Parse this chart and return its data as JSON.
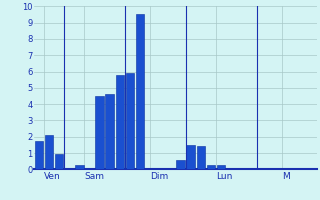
{
  "bar_values": [
    1.75,
    2.1,
    0.95,
    0.0,
    0.3,
    0.0,
    4.5,
    4.6,
    5.8,
    5.9,
    9.5,
    0.0,
    0.0,
    0.0,
    0.55,
    1.5,
    1.45,
    0.3,
    0.3,
    0.0,
    0.0,
    0.0,
    0.0,
    0.0,
    0.0,
    0.0,
    0.0,
    0.0
  ],
  "n_bars": 28,
  "day_labels": [
    "Ven",
    "Sam",
    "Dim",
    "Lun",
    "M"
  ],
  "day_tick_positions": [
    0.5,
    4.5,
    11,
    17.5,
    24
  ],
  "day_vline_positions": [
    2.5,
    8.5,
    14.5,
    21.5
  ],
  "ylim": [
    0,
    10
  ],
  "yticks": [
    0,
    1,
    2,
    3,
    4,
    5,
    6,
    7,
    8,
    9,
    10
  ],
  "bar_color": "#1a50d0",
  "bar_edge_color": "#0a30a0",
  "background_color": "#d4f4f4",
  "grid_color": "#a8c8c8",
  "label_color": "#1a30b0",
  "bar_width": 0.85,
  "figsize": [
    3.2,
    2.0
  ],
  "dpi": 100
}
